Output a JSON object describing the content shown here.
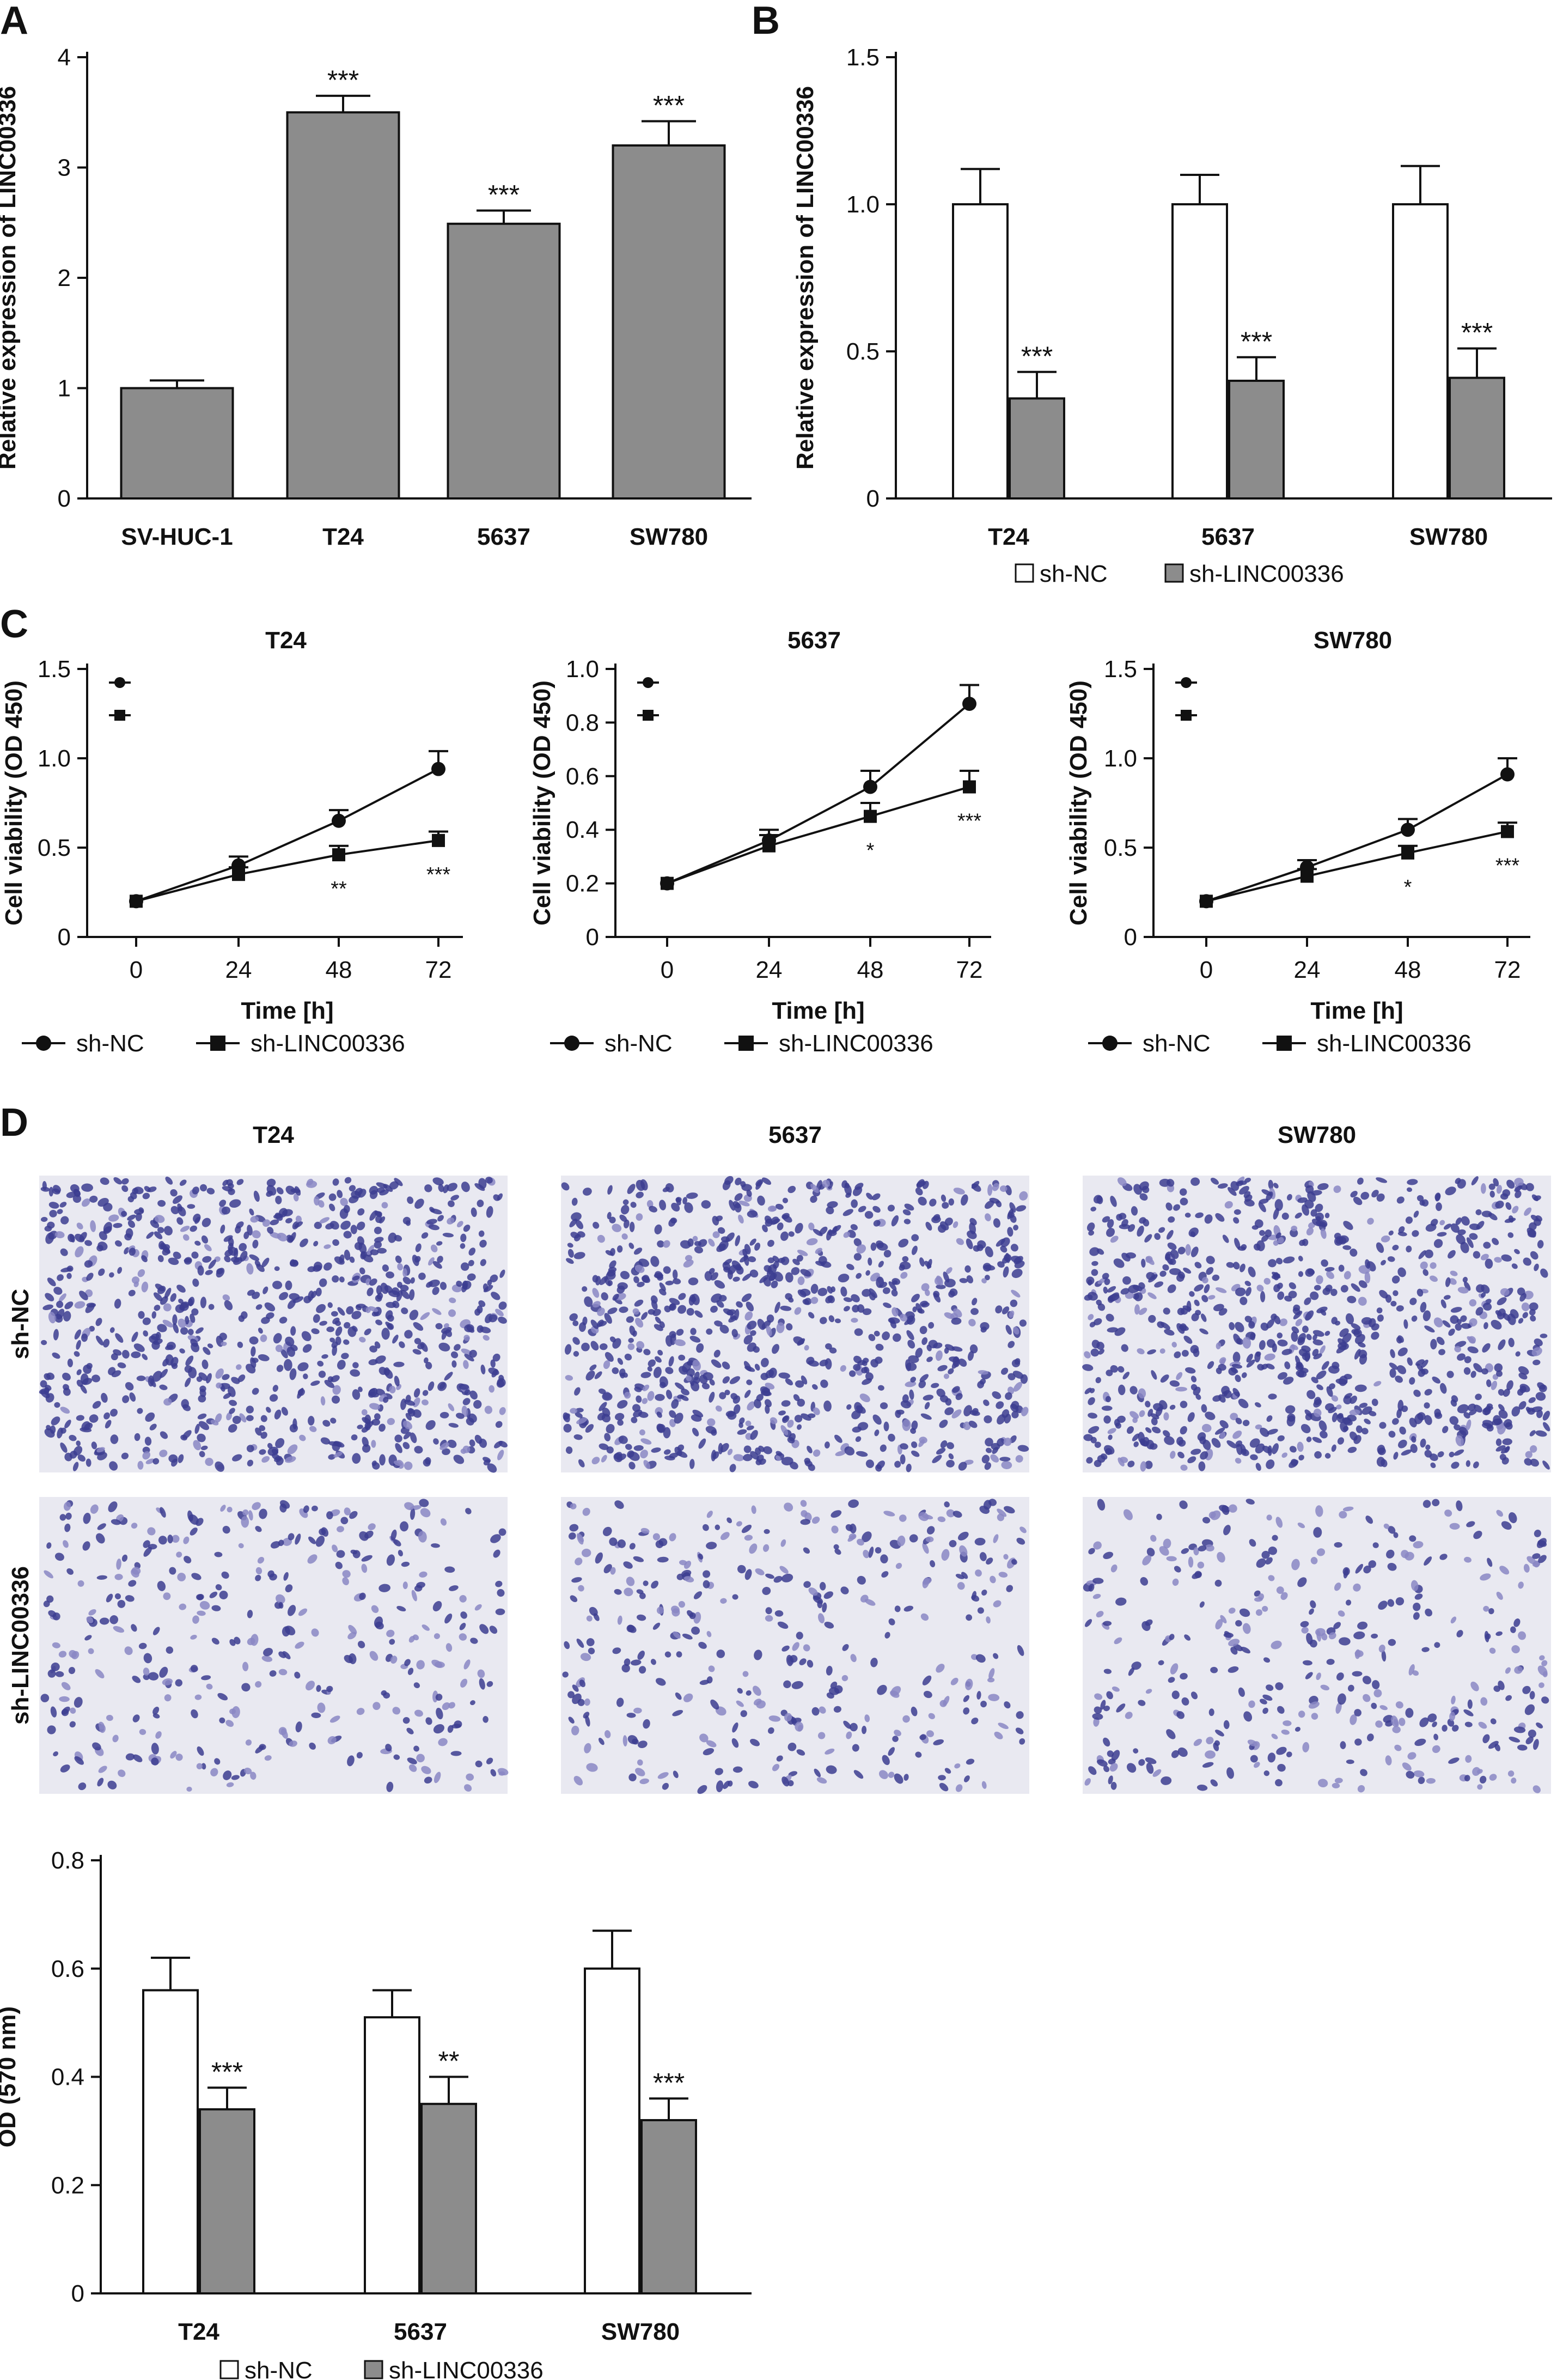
{
  "panel_labels": {
    "A": "A",
    "B": "B",
    "C": "C",
    "D": "D"
  },
  "chart_data": [
    {
      "id": "A",
      "type": "bar",
      "categories": [
        "SV-HUC-1",
        "T24",
        "5637",
        "SW780"
      ],
      "values": [
        1.0,
        3.5,
        2.49,
        3.2
      ],
      "errors": [
        0.07,
        0.15,
        0.12,
        0.22
      ],
      "significance": [
        "",
        "***",
        "***",
        "***"
      ],
      "ylabel": "Relative expression of LINC00336",
      "ylim": [
        0,
        4
      ],
      "yticks": [
        "0",
        "1",
        "2",
        "3",
        "4"
      ],
      "colors": {
        "bar": "#8c8c8c"
      }
    },
    {
      "id": "B",
      "type": "bar",
      "categories": [
        "T24",
        "5637",
        "SW780"
      ],
      "series": [
        {
          "name": "sh-NC",
          "values": [
            1.0,
            1.0,
            1.0
          ],
          "errors": [
            0.12,
            0.1,
            0.13
          ],
          "color": "#ffffff"
        },
        {
          "name": "sh-LINC00336",
          "values": [
            0.34,
            0.4,
            0.41
          ],
          "errors": [
            0.09,
            0.08,
            0.1
          ],
          "color": "#8c8c8c",
          "significance": [
            "***",
            "***",
            "***"
          ]
        }
      ],
      "ylabel": "Relative expression of LINC00336",
      "ylim": [
        0,
        1.5
      ],
      "yticks": [
        "0",
        "0.5",
        "1.0",
        "1.5"
      ],
      "legend": "bottom"
    },
    {
      "id": "C1",
      "type": "line",
      "title": "T24",
      "x": [
        0,
        24,
        48,
        72
      ],
      "xticks": [
        "0",
        "24",
        "48",
        "72"
      ],
      "xlabel": "Time [h]",
      "ylabel": "Cell viability (OD 450)",
      "ylim": [
        0,
        1.5
      ],
      "yticks": [
        "0",
        "0.5",
        "1.0",
        "1.5"
      ],
      "series": [
        {
          "name": "sh-NC",
          "marker": "circle",
          "values": [
            0.2,
            0.4,
            0.65,
            0.94
          ],
          "errors": [
            0.02,
            0.05,
            0.06,
            0.1
          ]
        },
        {
          "name": "sh-LINC00336",
          "marker": "square",
          "values": [
            0.2,
            0.35,
            0.46,
            0.54
          ],
          "errors": [
            0.02,
            0.04,
            0.05,
            0.05
          ],
          "significance": [
            "",
            "",
            "**",
            "***"
          ]
        }
      ],
      "legend_corner": [
        "1.4",
        "1.25"
      ]
    },
    {
      "id": "C2",
      "type": "line",
      "title": "5637",
      "x": [
        0,
        24,
        48,
        72
      ],
      "xticks": [
        "0",
        "24",
        "48",
        "72"
      ],
      "xlabel": "Time [h]",
      "ylabel": "Cell viability (OD 450)",
      "ylim": [
        0,
        1.0
      ],
      "yticks": [
        "0",
        "0.2",
        "0.4",
        "0.6",
        "0.8",
        "1.0"
      ],
      "series": [
        {
          "name": "sh-NC",
          "marker": "circle",
          "values": [
            0.2,
            0.36,
            0.56,
            0.87
          ],
          "errors": [
            0.02,
            0.04,
            0.06,
            0.07
          ]
        },
        {
          "name": "sh-LINC00336",
          "marker": "square",
          "values": [
            0.2,
            0.34,
            0.45,
            0.56
          ],
          "errors": [
            0.02,
            0.04,
            0.05,
            0.06
          ],
          "significance": [
            "",
            "",
            "*",
            "***"
          ]
        }
      ]
    },
    {
      "id": "C3",
      "type": "line",
      "title": "SW780",
      "x": [
        0,
        24,
        48,
        72
      ],
      "xticks": [
        "0",
        "24",
        "48",
        "72"
      ],
      "xlabel": "Time [h]",
      "ylabel": "Cell viability (OD 450)",
      "ylim": [
        0,
        1.5
      ],
      "yticks": [
        "0",
        "0.5",
        "1.0",
        "1.5"
      ],
      "series": [
        {
          "name": "sh-NC",
          "marker": "circle",
          "values": [
            0.2,
            0.39,
            0.6,
            0.91
          ],
          "errors": [
            0.02,
            0.04,
            0.06,
            0.09
          ]
        },
        {
          "name": "sh-LINC00336",
          "marker": "square",
          "values": [
            0.2,
            0.34,
            0.47,
            0.59
          ],
          "errors": [
            0.02,
            0.04,
            0.04,
            0.05
          ],
          "significance": [
            "",
            "",
            "*",
            "***"
          ]
        }
      ]
    },
    {
      "id": "D",
      "type": "bar",
      "categories": [
        "T24",
        "5637",
        "SW780"
      ],
      "series": [
        {
          "name": "sh-NC",
          "values": [
            0.56,
            0.51,
            0.6
          ],
          "errors": [
            0.06,
            0.05,
            0.07
          ],
          "color": "#ffffff"
        },
        {
          "name": "sh-LINC00336",
          "values": [
            0.34,
            0.35,
            0.32
          ],
          "errors": [
            0.04,
            0.05,
            0.04
          ],
          "color": "#8c8c8c",
          "significance": [
            "***",
            "**",
            "***"
          ]
        }
      ],
      "ylabel": "OD (570 nm)",
      "ylim": [
        0,
        0.8
      ],
      "yticks": [
        "0",
        "0.2",
        "0.4",
        "0.6",
        "0.8"
      ],
      "legend": "bottom"
    }
  ],
  "micrographs": {
    "columns": [
      "T24",
      "5637",
      "SW780"
    ],
    "rows": [
      "sh-NC",
      "sh-LINC00336"
    ],
    "colors": {
      "background": "#e9e9f1",
      "nucleus": "#3c3d91",
      "light_stain": "#8a87c4"
    }
  }
}
